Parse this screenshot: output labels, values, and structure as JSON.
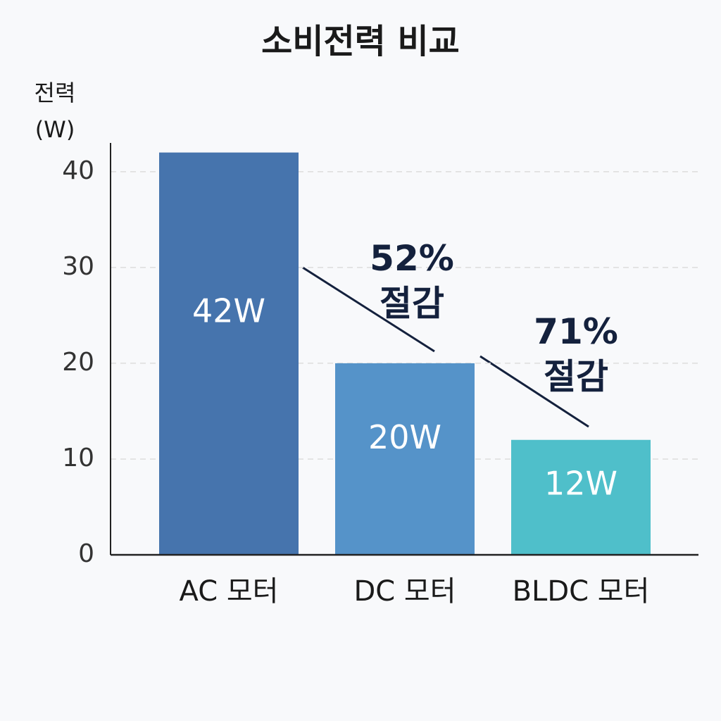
{
  "chart_data": {
    "type": "bar",
    "title": "소비전력 비교",
    "y_label": "전력 (W)",
    "categories": [
      "AC 모터",
      "DC 모터",
      "BLDC 모터"
    ],
    "values": [
      42,
      20,
      12
    ],
    "value_labels": [
      "42W",
      "20W",
      "12W"
    ],
    "colors": [
      "#4674ad",
      "#5593c9",
      "#4fbfca"
    ],
    "ylim": [
      0,
      43
    ],
    "yticks": [
      0,
      10,
      20,
      30,
      40
    ],
    "grid": true,
    "annotations": [
      {
        "lines": [
          "52%",
          "절감"
        ]
      },
      {
        "lines": [
          "71%",
          "절감"
        ]
      }
    ]
  }
}
